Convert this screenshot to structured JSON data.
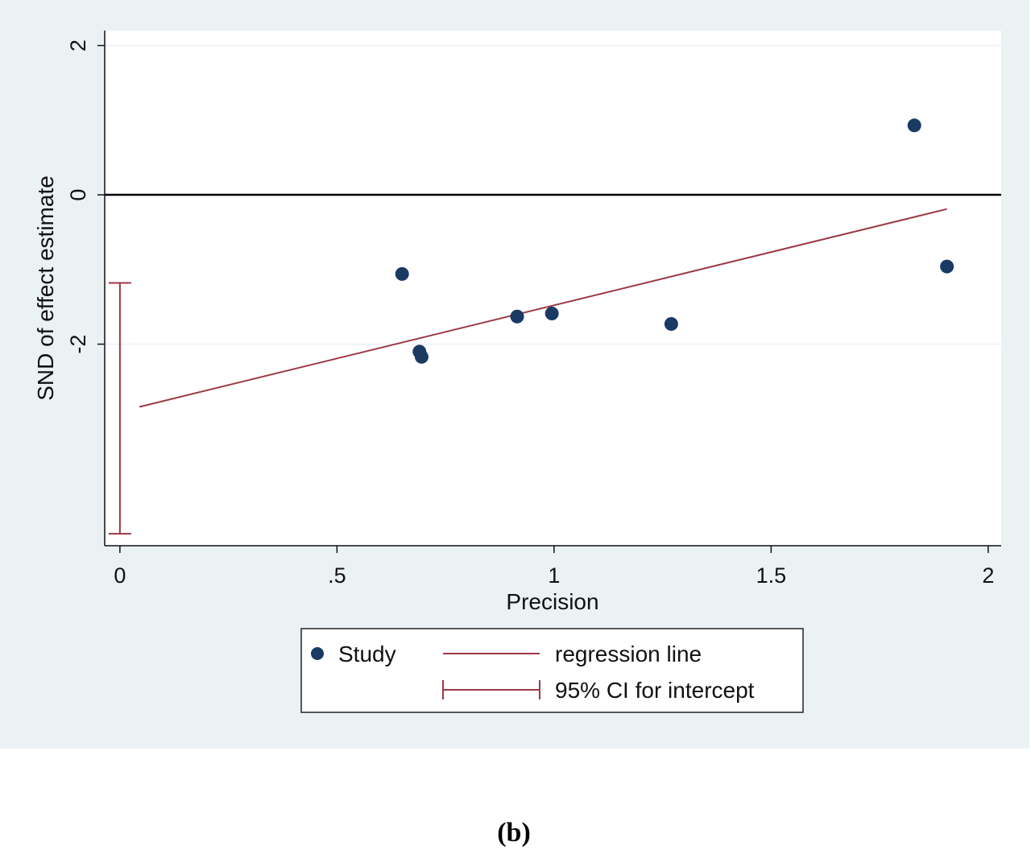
{
  "chart_data": {
    "type": "scatter",
    "xlabel": "Precision",
    "ylabel": "SND of effect estimate",
    "xlim": [
      -0.035,
      2.03
    ],
    "ylim": [
      -4.7,
      2.2
    ],
    "x_ticks": [
      {
        "value": 0,
        "label": "0"
      },
      {
        "value": 0.5,
        "label": ".5"
      },
      {
        "value": 1,
        "label": "1"
      },
      {
        "value": 1.5,
        "label": "1.5"
      },
      {
        "value": 2,
        "label": "2"
      }
    ],
    "y_ticks": [
      {
        "value": 2,
        "label": "2"
      },
      {
        "value": 0,
        "label": "0"
      },
      {
        "value": -2,
        "label": "-2"
      }
    ],
    "grid": "horizontal",
    "reference_line_y": 0,
    "series": [
      {
        "name": "Study",
        "kind": "scatter",
        "color": "#1a3a63",
        "points": [
          {
            "x": 0.65,
            "y": -1.06
          },
          {
            "x": 0.69,
            "y": -2.1
          },
          {
            "x": 0.695,
            "y": -2.17
          },
          {
            "x": 0.915,
            "y": -1.63
          },
          {
            "x": 0.995,
            "y": -1.59
          },
          {
            "x": 1.27,
            "y": -1.73
          },
          {
            "x": 1.83,
            "y": 0.93
          },
          {
            "x": 1.905,
            "y": -0.96
          }
        ]
      },
      {
        "name": "regression line",
        "kind": "line",
        "color": "#9b3a45",
        "points": [
          {
            "x": 0.045,
            "y": -2.84
          },
          {
            "x": 1.905,
            "y": -0.19
          }
        ]
      },
      {
        "name": "95% CI for intercept",
        "kind": "errorbar",
        "color": "#9b3a45",
        "x": 0,
        "low": -4.54,
        "high": -1.18
      }
    ],
    "legend": {
      "position": "bottom",
      "items": [
        {
          "label": "Study",
          "symbol": "marker"
        },
        {
          "label": "regression line",
          "symbol": "line"
        },
        {
          "label": "95% CI for intercept",
          "symbol": "errorbar"
        }
      ]
    },
    "colors": {
      "outer_background": "#eaf2f3",
      "plot_background": "#ffffff",
      "marker": "#1a3a63",
      "regression": "#9b3a45",
      "grid": "#eaf2f3",
      "axis": "#111111"
    }
  },
  "caption": "(b)"
}
